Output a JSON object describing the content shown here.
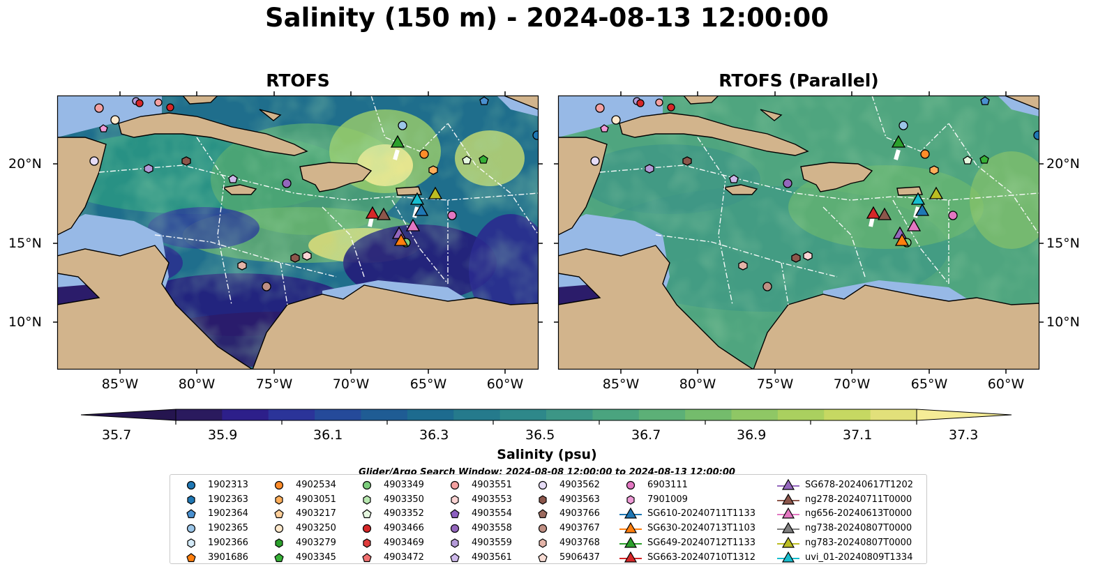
{
  "title": "Salinity (150 m) - 2024-08-13 12:00:00",
  "panels": [
    {
      "title": "RTOFS"
    },
    {
      "title": "RTOFS (Parallel)"
    }
  ],
  "lon_ticks": [
    "85°W",
    "80°W",
    "75°W",
    "70°W",
    "65°W",
    "60°W"
  ],
  "lat_ticks": [
    "20°N",
    "15°N",
    "10°N"
  ],
  "colorbar": {
    "label": "Salinity (psu)",
    "ticks": [
      "35.7",
      "35.9",
      "36.1",
      "36.3",
      "36.5",
      "36.7",
      "36.9",
      "37.1",
      "37.3"
    ],
    "levels": [
      "#2a1a5e",
      "#2d1f8a",
      "#2b3499",
      "#254a9a",
      "#1f5c94",
      "#1d6b8f",
      "#257a8c",
      "#2e888a",
      "#3c9686",
      "#4aa47f",
      "#5cb077",
      "#74bc6c",
      "#8fc765",
      "#aad05f",
      "#c6d862",
      "#e2e07a"
    ],
    "min_color": "#25154f",
    "max_color": "#f5ec96"
  },
  "search_window": "Glider/Argo Search Window: 2024-08-08 12:00:00 to 2024-08-13 12:00:00",
  "map_colors": {
    "land": "#d2b48c",
    "shelf": "#97b9e6",
    "coast": "#000000",
    "eez": "#ffffff"
  },
  "legend": {
    "columns": [
      [
        {
          "label": "1902313",
          "marker": "circle",
          "color": "#1f77b4"
        },
        {
          "label": "1902363",
          "marker": "hexagon",
          "color": "#1f77b4"
        },
        {
          "label": "1902364",
          "marker": "pentagon",
          "color": "#4a90d0"
        },
        {
          "label": "1902365",
          "marker": "circle",
          "color": "#9cc6e8"
        },
        {
          "label": "1902366",
          "marker": "hexagon",
          "color": "#d4eaf8"
        },
        {
          "label": "3901686",
          "marker": "pentagon",
          "color": "#ff7f0e"
        }
      ],
      [
        {
          "label": "4902534",
          "marker": "circle",
          "color": "#ff8c2a"
        },
        {
          "label": "4903051",
          "marker": "hexagon",
          "color": "#ffae5a"
        },
        {
          "label": "4903217",
          "marker": "pentagon",
          "color": "#ffcf9a"
        },
        {
          "label": "4903250",
          "marker": "circle",
          "color": "#ffe9cc"
        },
        {
          "label": "4903279",
          "marker": "hexagon",
          "color": "#2ca02c"
        },
        {
          "label": "4903345",
          "marker": "pentagon",
          "color": "#36b036"
        }
      ],
      [
        {
          "label": "4903349",
          "marker": "circle",
          "color": "#7ccd7c"
        },
        {
          "label": "4903350",
          "marker": "hexagon",
          "color": "#b8e8b0"
        },
        {
          "label": "4903352",
          "marker": "pentagon",
          "color": "#e6f8e0"
        },
        {
          "label": "4903466",
          "marker": "circle",
          "color": "#d62728"
        },
        {
          "label": "4903469",
          "marker": "hexagon",
          "color": "#e03c3c"
        },
        {
          "label": "4903472",
          "marker": "pentagon",
          "color": "#f07070"
        }
      ],
      [
        {
          "label": "4903551",
          "marker": "circle",
          "color": "#f4a0a0"
        },
        {
          "label": "4903553",
          "marker": "hexagon",
          "color": "#fbd4d4"
        },
        {
          "label": "4903554",
          "marker": "pentagon",
          "color": "#8c5fc0"
        },
        {
          "label": "4903558",
          "marker": "circle",
          "color": "#9467bd"
        },
        {
          "label": "4903559",
          "marker": "hexagon",
          "color": "#b49ad8"
        },
        {
          "label": "4903561",
          "marker": "pentagon",
          "color": "#cdb8ea"
        }
      ],
      [
        {
          "label": "4903562",
          "marker": "circle",
          "color": "#e6dcf6"
        },
        {
          "label": "4903563",
          "marker": "hexagon",
          "color": "#8c564b"
        },
        {
          "label": "4903766",
          "marker": "pentagon",
          "color": "#9c6a5e"
        },
        {
          "label": "4903767",
          "marker": "circle",
          "color": "#c09084"
        },
        {
          "label": "4903768",
          "marker": "hexagon",
          "color": "#e4b4a8"
        },
        {
          "label": "5906437",
          "marker": "pentagon",
          "color": "#f8dcd4"
        }
      ],
      [
        {
          "label": "6903111",
          "marker": "circle",
          "color": "#e377c2"
        },
        {
          "label": "7901009",
          "marker": "hexagon",
          "color": "#ee9ad6"
        },
        {
          "label": "SG610-20240711T1133",
          "marker": "triangle",
          "color": "#1f77b4"
        },
        {
          "label": "SG630-20240713T1103",
          "marker": "triangle",
          "color": "#ff7f0e"
        },
        {
          "label": "SG649-20240712T1133",
          "marker": "triangle",
          "color": "#2ca02c"
        },
        {
          "label": "SG663-20240710T1312",
          "marker": "triangle",
          "color": "#d62728"
        }
      ],
      [
        {
          "label": "SG678-20240617T1202",
          "marker": "triangle",
          "color": "#9467bd"
        },
        {
          "label": "ng278-20240711T0000",
          "marker": "triangle",
          "color": "#8c564b"
        },
        {
          "label": "ng656-20240613T0000",
          "marker": "triangle",
          "color": "#e377c2"
        },
        {
          "label": "ng738-20240807T0000",
          "marker": "triangle",
          "color": "#7f7f7f"
        },
        {
          "label": "ng783-20240807T0000",
          "marker": "triangle",
          "color": "#bcbd22"
        },
        {
          "label": "uvi_01-20240809T1334",
          "marker": "triangle",
          "color": "#17becf"
        }
      ]
    ]
  }
}
